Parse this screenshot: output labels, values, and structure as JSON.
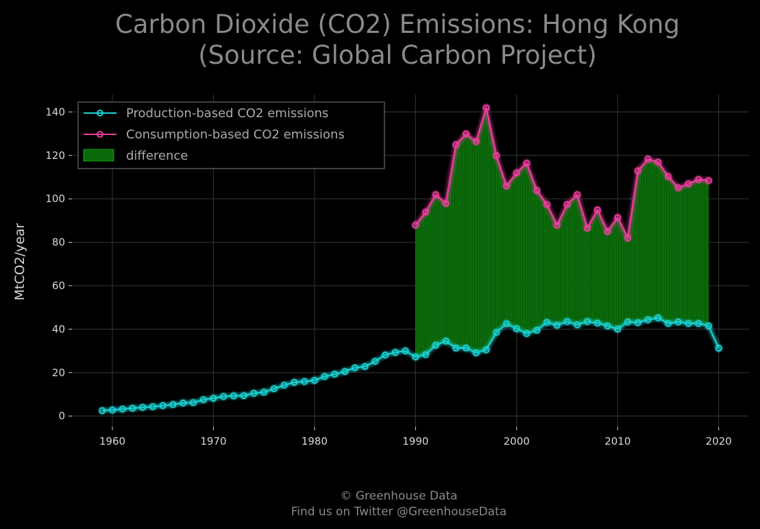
{
  "chart_data": {
    "type": "line",
    "title": "Carbon Dioxide (CO2) Emissions: Hong Kong",
    "subtitle": "(Source: Global Carbon Project)",
    "xlabel": "",
    "ylabel": "MtCO2/year",
    "xlim": [
      1956,
      2023
    ],
    "ylim": [
      -5,
      148
    ],
    "xticks": [
      1960,
      1970,
      1980,
      1990,
      2000,
      2010,
      2020
    ],
    "yticks": [
      0,
      20,
      40,
      60,
      80,
      100,
      120,
      140
    ],
    "grid": true,
    "legend_position": "top-left",
    "colors": {
      "background": "#000000",
      "grid": "#2e2e2e",
      "production": "#1ad3d3",
      "consumption": "#ee3fa0",
      "difference": "#0a6a0a"
    },
    "series": [
      {
        "name": "Production-based CO2 emissions",
        "x": [
          1959,
          1960,
          1961,
          1962,
          1963,
          1964,
          1965,
          1966,
          1967,
          1968,
          1969,
          1970,
          1971,
          1972,
          1973,
          1974,
          1975,
          1976,
          1977,
          1978,
          1979,
          1980,
          1981,
          1982,
          1983,
          1984,
          1985,
          1986,
          1987,
          1988,
          1989,
          1990,
          1991,
          1992,
          1993,
          1994,
          1995,
          1996,
          1997,
          1998,
          1999,
          2000,
          2001,
          2002,
          2003,
          2004,
          2005,
          2006,
          2007,
          2008,
          2009,
          2010,
          2011,
          2012,
          2013,
          2014,
          2015,
          2016,
          2017,
          2018,
          2019,
          2020
        ],
        "values": [
          2.5,
          2.8,
          3.2,
          3.6,
          4.0,
          4.3,
          4.8,
          5.3,
          6.0,
          6.2,
          7.5,
          8.2,
          9.0,
          9.3,
          9.4,
          10.5,
          11.0,
          12.6,
          14.2,
          15.5,
          15.9,
          16.4,
          18.2,
          19.3,
          20.5,
          22.2,
          22.8,
          25.2,
          28.1,
          29.3,
          30.0,
          27.2,
          28.3,
          32.6,
          34.5,
          31.3,
          31.3,
          29.1,
          30.5,
          38.5,
          42.5,
          40.2,
          38.0,
          39.5,
          43.1,
          41.8,
          43.5,
          42.0,
          43.5,
          42.8,
          41.5,
          40.0,
          43.3,
          43.0,
          44.3,
          45.2,
          42.6,
          43.3,
          42.6,
          42.6,
          41.5,
          31.2
        ]
      },
      {
        "name": "Consumption-based CO2 emissions",
        "x": [
          1990,
          1991,
          1992,
          1993,
          1994,
          1995,
          1996,
          1997,
          1998,
          1999,
          2000,
          2001,
          2002,
          2003,
          2004,
          2005,
          2006,
          2007,
          2008,
          2009,
          2010,
          2011,
          2012,
          2013,
          2014,
          2015,
          2016,
          2017,
          2018,
          2019
        ],
        "values": [
          87.9,
          93.9,
          101.9,
          97.9,
          124.9,
          129.9,
          126.4,
          141.9,
          119.9,
          105.9,
          111.9,
          116.4,
          103.9,
          97.4,
          87.9,
          97.4,
          101.9,
          86.5,
          94.9,
          85.0,
          91.4,
          82.0,
          112.9,
          118.3,
          116.9,
          110.3,
          105.1,
          106.9,
          108.9,
          108.4
        ]
      }
    ],
    "fill_label": "difference",
    "credit_line1": "© Greenhouse Data",
    "credit_line2": "Find us on Twitter @GreenhouseData"
  }
}
